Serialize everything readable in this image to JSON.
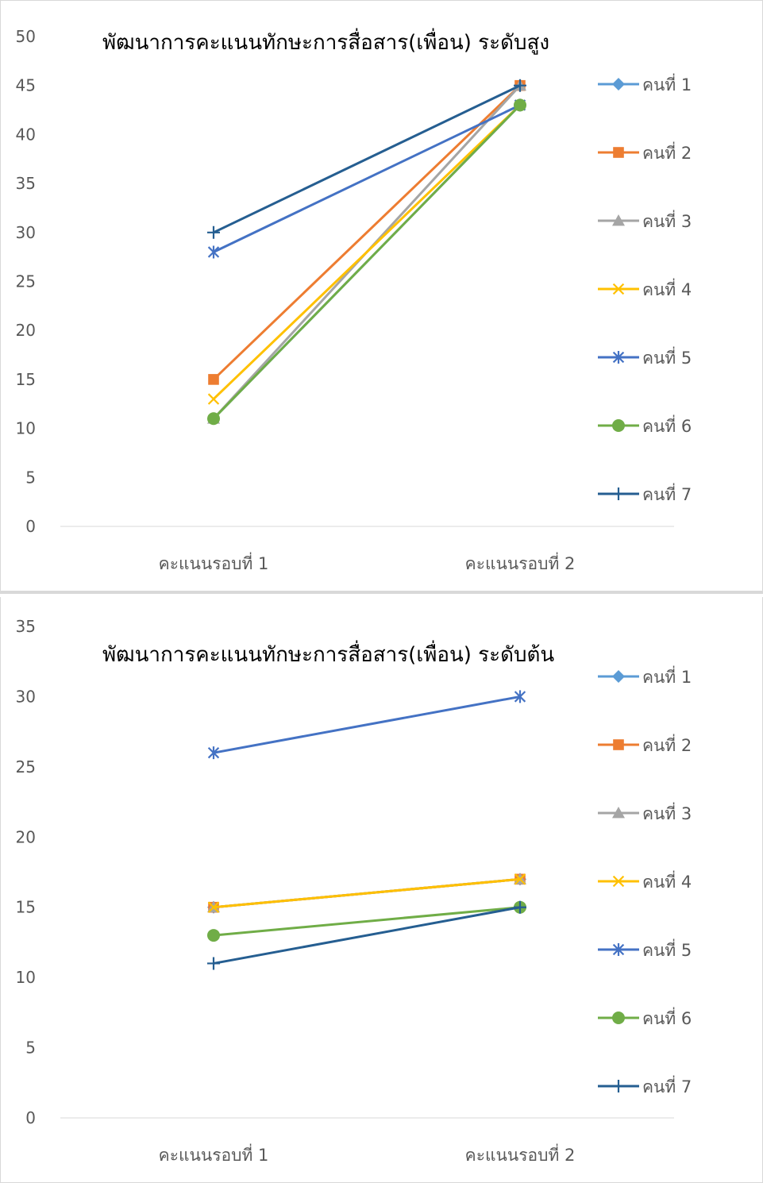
{
  "chart_data": [
    {
      "type": "line",
      "title": "พัฒนาการคะแนนทักษะการสื่อสาร(เพื่อน) ระดับสูง",
      "categories": [
        "คะแนนรอบที่  1",
        "คะแนนรอบที่  2"
      ],
      "ylim": [
        0,
        50
      ],
      "yticks": [
        0,
        5,
        10,
        15,
        20,
        25,
        30,
        35,
        40,
        45,
        50
      ],
      "grid": false,
      "legend_position": "right",
      "series": [
        {
          "name": "คนที่ 1",
          "values": [
            11,
            43
          ],
          "color": "#5B9BD5",
          "marker": "diamond"
        },
        {
          "name": "คนที่ 2",
          "values": [
            15,
            45
          ],
          "color": "#ED7D31",
          "marker": "square"
        },
        {
          "name": "คนที่ 3",
          "values": [
            11,
            45
          ],
          "color": "#A5A5A5",
          "marker": "triangle"
        },
        {
          "name": "คนที่ 4",
          "values": [
            13,
            43
          ],
          "color": "#FFC000",
          "marker": "x"
        },
        {
          "name": "คนที่ 5",
          "values": [
            28,
            43
          ],
          "color": "#4472C4",
          "marker": "star"
        },
        {
          "name": "คนที่ 6",
          "values": [
            11,
            43
          ],
          "color": "#70AD47",
          "marker": "circle"
        },
        {
          "name": "คนที่ 7",
          "values": [
            30,
            45
          ],
          "color": "#255E91",
          "marker": "plus"
        }
      ]
    },
    {
      "type": "line",
      "title": "พัฒนาการคะแนนทักษะการสื่อสาร(เพื่อน) ระดับต้น",
      "categories": [
        "คะแนนรอบที่  1",
        "คะแนนรอบที่  2"
      ],
      "ylim": [
        0,
        35
      ],
      "yticks": [
        0,
        5,
        10,
        15,
        20,
        25,
        30,
        35
      ],
      "grid": false,
      "legend_position": "right",
      "series": [
        {
          "name": "คนที่ 1",
          "values": [
            15,
            17
          ],
          "color": "#5B9BD5",
          "marker": "diamond"
        },
        {
          "name": "คนที่ 2",
          "values": [
            15,
            17
          ],
          "color": "#ED7D31",
          "marker": "square"
        },
        {
          "name": "คนที่ 3",
          "values": [
            15,
            17
          ],
          "color": "#A5A5A5",
          "marker": "triangle"
        },
        {
          "name": "คนที่ 4",
          "values": [
            15,
            17
          ],
          "color": "#FFC000",
          "marker": "x"
        },
        {
          "name": "คนที่ 5",
          "values": [
            26,
            30
          ],
          "color": "#4472C4",
          "marker": "star"
        },
        {
          "name": "คนที่ 6",
          "values": [
            13,
            15
          ],
          "color": "#70AD47",
          "marker": "circle"
        },
        {
          "name": "คนที่ 7",
          "values": [
            11,
            15
          ],
          "color": "#255E91",
          "marker": "plus"
        }
      ]
    }
  ]
}
